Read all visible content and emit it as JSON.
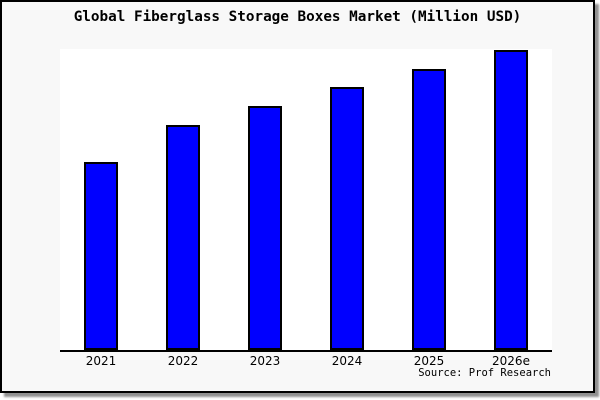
{
  "source_text": "Source: Prof Research",
  "colors": {
    "bar_fill": "#0000ff",
    "bar_border": "#000000",
    "figure_background": "#f8f8f8",
    "plot_background": "#ffffff",
    "axis_line": "#000000",
    "frame_border": "#000000",
    "shadow": "#909090",
    "text": "#000000"
  },
  "chart_data": {
    "type": "bar",
    "title": "Global Fiberglass Storage Boxes Market (Million USD)",
    "categories": [
      "2021",
      "2022",
      "2023",
      "2024",
      "2025",
      "2026e"
    ],
    "values": [
      62.7,
      75.0,
      81.3,
      87.7,
      93.7,
      100.0
    ],
    "units": "relative (no y-axis values shown; normalized to 2026e = 100)",
    "xlabel": "",
    "ylabel": "",
    "ylim": [
      0,
      100.33
    ],
    "grid": false,
    "legend": false,
    "bar_count": 6
  }
}
